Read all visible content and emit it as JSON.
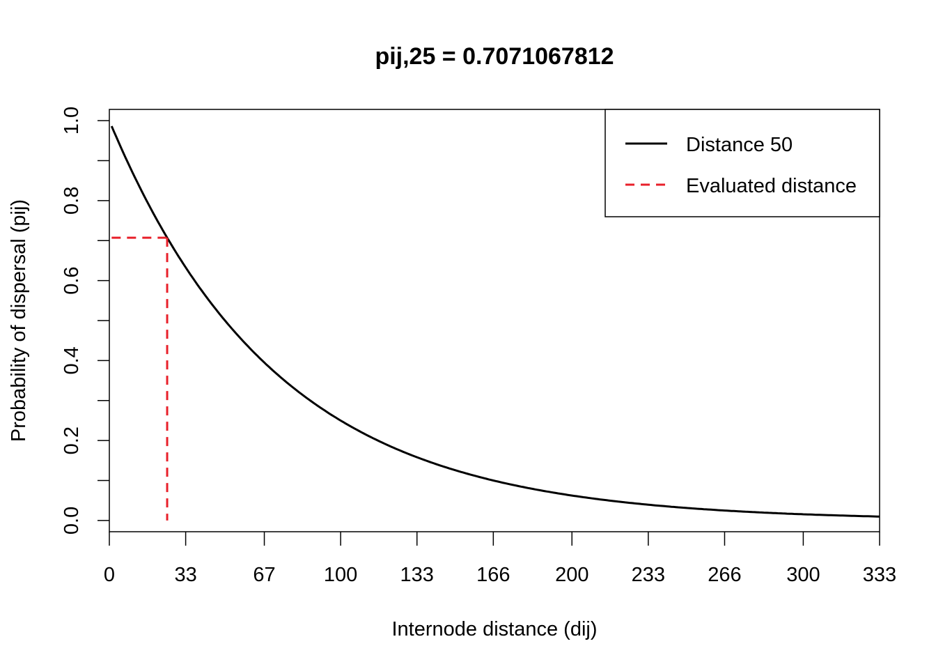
{
  "chart_data": {
    "type": "line",
    "title": "pij,25 = 0.7071067812",
    "xlabel": "Internode distance (dij)",
    "ylabel": "Probability of dispersal (pij)",
    "xlim": [
      0,
      333
    ],
    "ylim": [
      -0.028,
      1.028
    ],
    "x_ticks": [
      0,
      33,
      67,
      100,
      133,
      166,
      200,
      233,
      266,
      300,
      333
    ],
    "y_ticks": [
      0.0,
      0.1,
      0.2,
      0.3,
      0.4,
      0.5,
      0.6,
      0.7,
      0.8,
      0.9,
      1.0
    ],
    "y_tick_labels": [
      "0.0",
      "0.2",
      "0.4",
      "0.6",
      "0.8",
      "1.0"
    ],
    "y_tick_label_values": [
      0.0,
      0.2,
      0.4,
      0.6,
      0.8,
      1.0
    ],
    "grid": false,
    "legend_position": "top-right",
    "series": [
      {
        "name": "Distance 50",
        "function": "0.5^(x/50)",
        "decay_distance": 50,
        "x_range": [
          1,
          333
        ],
        "color": "#000000",
        "style": "solid"
      },
      {
        "name": "Evaluated distance",
        "color": "#e8202a",
        "style": "dashed",
        "evaluated_x": 25,
        "evaluated_y": 0.7071067812,
        "x_start": 1
      }
    ]
  }
}
